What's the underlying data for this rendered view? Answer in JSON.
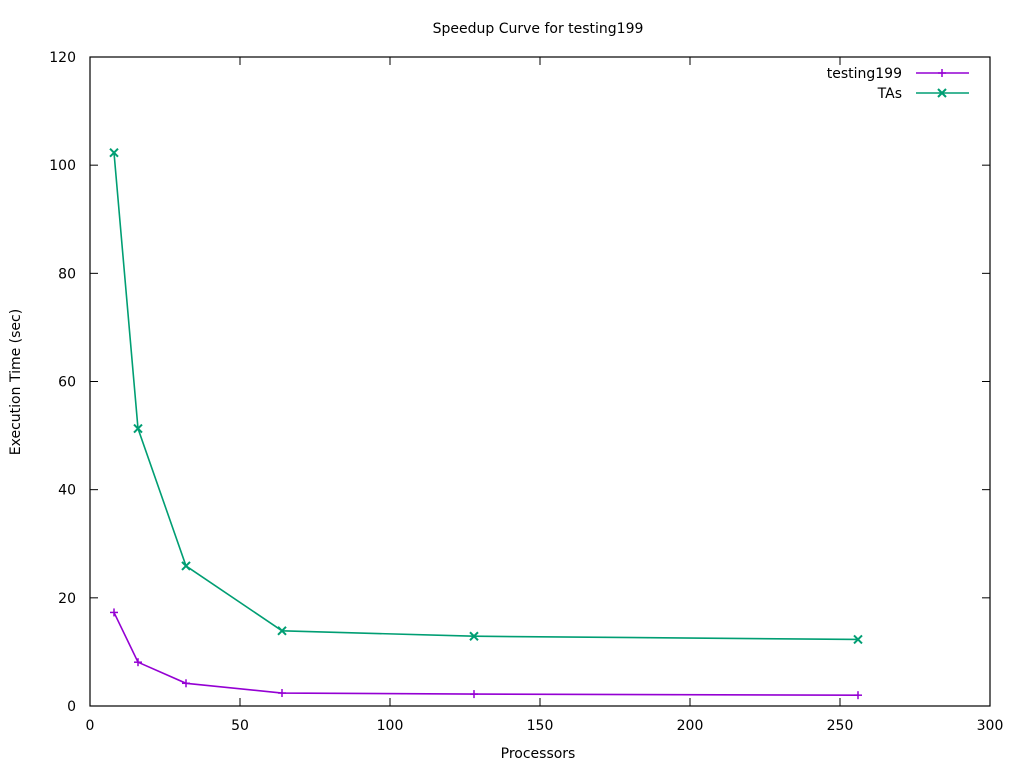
{
  "chart_data": {
    "type": "line",
    "title": "Speedup Curve for testing199",
    "xlabel": "Processors",
    "ylabel": "Execution Time (sec)",
    "xlim": [
      0,
      300
    ],
    "ylim": [
      0,
      120
    ],
    "xticks": [
      0,
      50,
      100,
      150,
      200,
      250,
      300
    ],
    "yticks": [
      0,
      20,
      40,
      60,
      80,
      100,
      120
    ],
    "grid": false,
    "legend_position": "top-right",
    "series": [
      {
        "name": "testing199",
        "color": "#9400d3",
        "marker": "plus",
        "x": [
          8,
          16,
          32,
          64,
          128,
          256
        ],
        "y": [
          17.3,
          8.1,
          4.2,
          2.4,
          2.2,
          2.0
        ]
      },
      {
        "name": "TAs",
        "color": "#009e73",
        "marker": "cross",
        "x": [
          8,
          16,
          32,
          64,
          128,
          256
        ],
        "y": [
          102.3,
          51.3,
          25.9,
          13.9,
          12.9,
          12.3
        ]
      }
    ]
  }
}
